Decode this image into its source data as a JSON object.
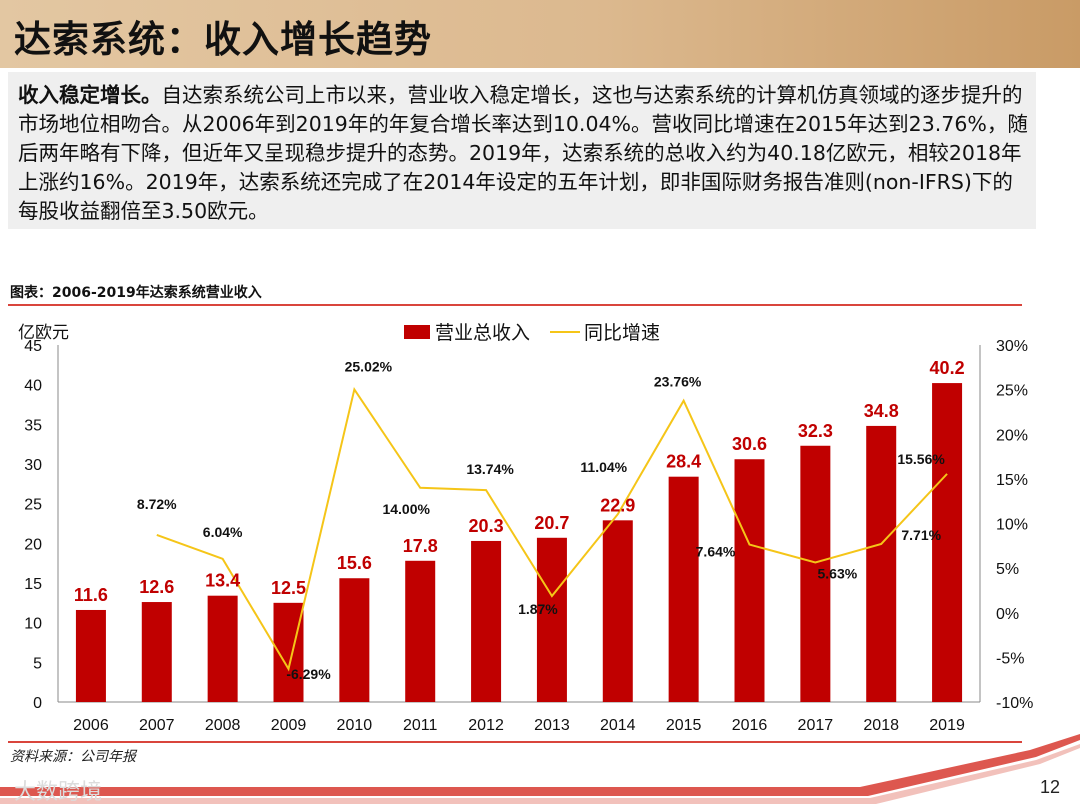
{
  "header": {
    "title": "达索系统：收入增长趋势"
  },
  "summary": {
    "lead": "收入稳定增长。",
    "body": "自达索系统公司上市以来，营业收入稳定增长，这也与达索系统的计算机仿真领域的逐步提升的市场地位相吻合。从2006年到2019年的年复合增长率达到10.04%。营收同比增速在2015年达到23.76%，随后两年略有下降，但近年又呈现稳步提升的态势。2019年，达索系统的总收入约为40.18亿欧元，相较2018年上涨约16%。2019年，达索系统还完成了在2014年设定的五年计划，即非国际财务报告准则(non-IFRS)下的每股收益翻倍至3.50欧元。"
  },
  "caption": "图表：2006-2019年达索系统营业收入",
  "source": "资料来源：公司年报",
  "page_number": "12",
  "watermark": "大数跨境",
  "colors": {
    "bar": "#c00000",
    "line": "#f5c518",
    "accent": "#d9453c"
  },
  "chart_data": {
    "type": "bar",
    "title": "2006-2019年达索系统营业收入",
    "y_unit_label": "亿欧元",
    "categories": [
      "2006",
      "2007",
      "2008",
      "2009",
      "2010",
      "2011",
      "2012",
      "2013",
      "2014",
      "2015",
      "2016",
      "2017",
      "2018",
      "2019"
    ],
    "series": [
      {
        "name": "营业总收入",
        "type": "bar",
        "axis": "left",
        "values": [
          11.6,
          12.6,
          13.4,
          12.5,
          15.6,
          17.8,
          20.3,
          20.7,
          22.9,
          28.4,
          30.6,
          32.3,
          34.8,
          40.2
        ],
        "labels": [
          "11.6",
          "12.6",
          "13.4",
          "12.5",
          "15.6",
          "17.8",
          "20.3",
          "20.7",
          "22.9",
          "28.4",
          "30.6",
          "32.3",
          "34.8",
          "40.2"
        ]
      },
      {
        "name": "同比增速",
        "type": "line",
        "axis": "right",
        "values": [
          null,
          8.72,
          6.04,
          -6.29,
          25.02,
          14.0,
          13.74,
          1.87,
          11.04,
          23.76,
          7.64,
          5.63,
          7.71,
          15.56
        ],
        "labels": [
          "",
          "8.72%",
          "6.04%",
          "-6.29%",
          "25.02%",
          "14.00%",
          "13.74%",
          "1.87%",
          "11.04%",
          "23.76%",
          "7.64%",
          "5.63%",
          "7.71%",
          "15.56%"
        ]
      }
    ],
    "ylim": [
      0,
      45
    ],
    "yticks": [
      "0",
      "5",
      "10",
      "15",
      "20",
      "25",
      "30",
      "35",
      "40",
      "45"
    ],
    "y2lim": [
      -10,
      30
    ],
    "y2ticks": [
      "-10%",
      "-5%",
      "0%",
      "5%",
      "10%",
      "15%",
      "20%",
      "25%",
      "30%"
    ],
    "legend": [
      "营业总收入",
      "同比增速"
    ],
    "legend_position": "top-center"
  }
}
